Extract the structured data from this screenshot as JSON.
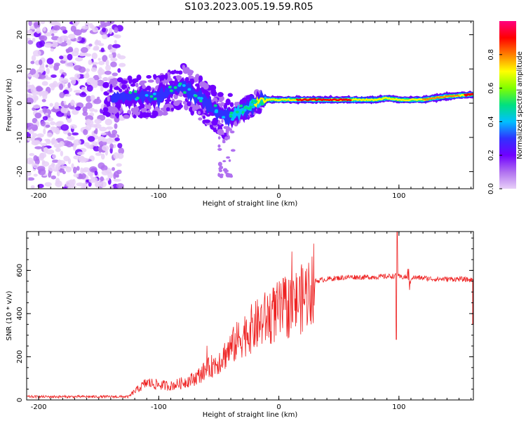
{
  "title": "S103.2023.005.19.59.R05",
  "chart_data": [
    {
      "type": "heatmap",
      "xlabel": "Height of straight line (km)",
      "ylabel": "Frequency (Hz)",
      "xlim": [
        -210,
        162
      ],
      "ylim": [
        -25,
        24
      ],
      "xticks": [
        -200,
        -100,
        0,
        100
      ],
      "yticks": [
        -20,
        -10,
        0,
        10,
        20
      ],
      "colorbar": {
        "label": "Normalized spectral amplitude",
        "range": [
          0,
          1
        ],
        "ticks": [
          "0.0",
          "0.2",
          "0.4",
          "0.6",
          "0.8"
        ]
      },
      "ridge": {
        "x": [
          -140,
          -120,
          -100,
          -80,
          -60,
          -45,
          -35,
          -20,
          -10,
          0,
          20,
          40,
          60,
          80,
          90,
          100,
          110,
          120,
          140,
          160
        ],
        "frequency": [
          1,
          2,
          2,
          5,
          0,
          -4,
          -3,
          0,
          1,
          1,
          1,
          1,
          1,
          1,
          1.5,
          1,
          1,
          1,
          2,
          2.5
        ]
      },
      "colors": [
        "#e8d0f8",
        "#b070f0",
        "#7000ff",
        "#3030ff",
        "#00c0ff",
        "#00e080",
        "#80ff00",
        "#ffff00",
        "#ff8000",
        "#ff0000",
        "#ff0080"
      ]
    },
    {
      "type": "line",
      "xlabel": "Height of straight line (km)",
      "ylabel": "SNR (10 * v/v)",
      "xlim": [
        -210,
        162
      ],
      "ylim": [
        0,
        780
      ],
      "xticks": [
        -200,
        -100,
        0,
        100
      ],
      "yticks": [
        0,
        200,
        400,
        600
      ],
      "x": [
        -210,
        -180,
        -150,
        -125,
        -120,
        -110,
        -100,
        -90,
        -80,
        -70,
        -60,
        -50,
        -40,
        -30,
        -20,
        -10,
        0,
        10,
        20,
        25,
        30,
        40,
        50,
        60,
        70,
        80,
        90,
        98,
        100,
        110,
        120,
        130,
        140,
        150,
        162
      ],
      "y": [
        15,
        15,
        15,
        15,
        40,
        80,
        70,
        65,
        80,
        100,
        140,
        180,
        240,
        300,
        340,
        380,
        410,
        440,
        470,
        510,
        550,
        560,
        565,
        570,
        568,
        570,
        572,
        575,
        570,
        568,
        565,
        560,
        560,
        560,
        555
      ],
      "color": "#ee2222"
    }
  ]
}
